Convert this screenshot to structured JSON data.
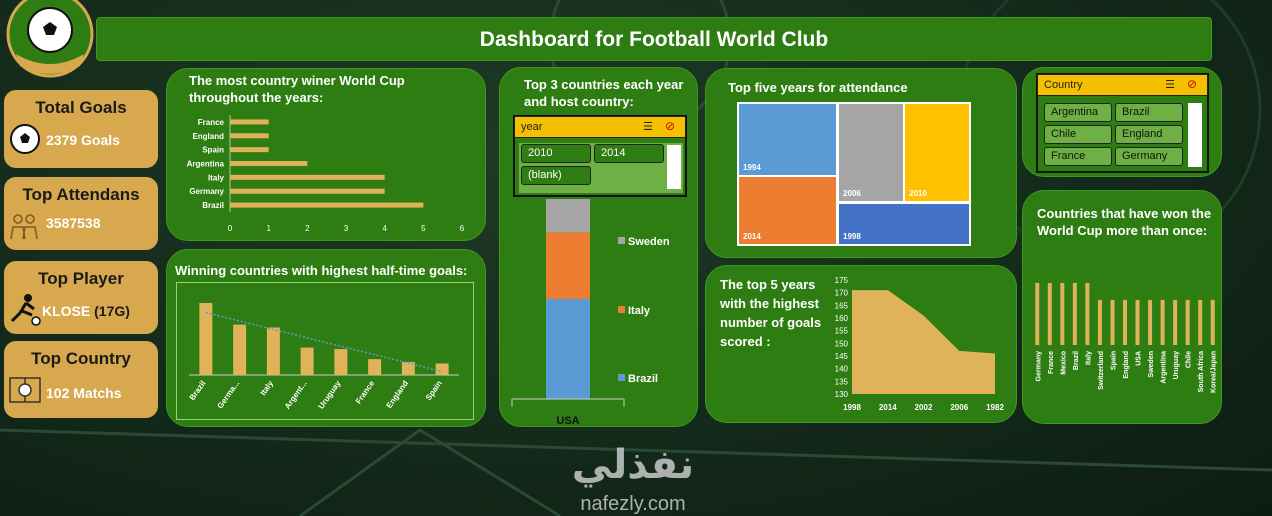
{
  "header": {
    "title": "Dashboard for Football World Club"
  },
  "kpis": [
    {
      "label": "Total Goals",
      "value": "2379 Goals",
      "icon": "soccer-ball-icon"
    },
    {
      "label": "Top Attendans",
      "value": "3587538",
      "icon": "crowd-icon"
    },
    {
      "label": "Top Player",
      "value_name": "KLOSE",
      "value_extra": "(17G)",
      "icon": "player-kick-icon"
    },
    {
      "label": "Top Country",
      "value": "102 Matchs",
      "icon": "pitch-ball-icon"
    }
  ],
  "charts": {
    "wins": {
      "title": "The most country winer World Cup throughout the years:",
      "chart_data": {
        "type": "bar",
        "orientation": "horizontal",
        "categories": [
          "France",
          "England",
          "Spain",
          "Argentina",
          "Italy",
          "Germany",
          "Brazil"
        ],
        "values": [
          1,
          1,
          1,
          2,
          4,
          4,
          5
        ],
        "xlim": [
          0,
          6
        ],
        "xticks": [
          "0",
          "1",
          "2",
          "3",
          "4",
          "5",
          "6"
        ],
        "color": "#e0b25a"
      }
    },
    "halftime": {
      "title": "Winning countries with highest half-time goals:",
      "chart_data": {
        "type": "bar",
        "categories": [
          "Brazil",
          "Germa...",
          "Italy",
          "Argent...",
          "Uruguay",
          "France",
          "England",
          "Spain"
        ],
        "values": [
          100,
          70,
          66,
          38,
          36,
          22,
          18,
          16
        ],
        "trendline": "linear",
        "color": "#e0b25a"
      }
    },
    "top3": {
      "title": "Top 3 countries each year and host country:",
      "slicer": {
        "header": "year",
        "items": [
          "2010",
          "2014",
          "(blank)"
        ]
      },
      "chart_data": {
        "type": "bar",
        "stacked": true,
        "categories": [
          "USA"
        ],
        "series": [
          {
            "name": "Brazil",
            "values": [
              3
            ],
            "color": "#5b9bd5"
          },
          {
            "name": "Italy",
            "values": [
              2
            ],
            "color": "#ed7d31"
          },
          {
            "name": "Sweden",
            "values": [
              1
            ],
            "color": "#a5a5a5"
          }
        ]
      }
    },
    "attendance": {
      "title": "Top five years for attendance",
      "chart_data": {
        "type": "treemap",
        "items": [
          {
            "label": "1994",
            "color": "#5b9bd5"
          },
          {
            "label": "2014",
            "color": "#ed7d31"
          },
          {
            "label": "2006",
            "color": "#a5a5a5"
          },
          {
            "label": "2010",
            "color": "#ffc000"
          },
          {
            "label": "1998",
            "color": "#4472c4"
          }
        ]
      }
    },
    "goals": {
      "title": "The top 5 years with the highest number of goals scored :",
      "chart_data": {
        "type": "area",
        "x": [
          "1998",
          "2014",
          "2002",
          "2006",
          "1982"
        ],
        "values": [
          171,
          171,
          161,
          147,
          146
        ],
        "ylim": [
          130,
          175
        ],
        "yticks": [
          "130",
          "135",
          "140",
          "145",
          "150",
          "155",
          "160",
          "165",
          "170",
          "175"
        ],
        "color": "#e0b25a"
      }
    },
    "multi": {
      "title": "Countries that have won the World Cup more than once:",
      "chart_data": {
        "type": "bar",
        "categories": [
          "Germany",
          "France",
          "Mexico",
          "Brazil",
          "Italy",
          "Switzerland",
          "Spain",
          "England",
          "USA",
          "Sweden",
          "Argentina",
          "Uruguay",
          "Chile",
          "South Africa",
          "Korea/Japan"
        ],
        "values": [
          11,
          11,
          11,
          11,
          11,
          8,
          8,
          8,
          8,
          8,
          8,
          8,
          8,
          8,
          8
        ],
        "color": "#e0b25a"
      }
    }
  },
  "country_slicer": {
    "header": "Country",
    "items": [
      "Argentina",
      "Brazil",
      "Chile",
      "England",
      "France",
      "Germany"
    ]
  }
}
